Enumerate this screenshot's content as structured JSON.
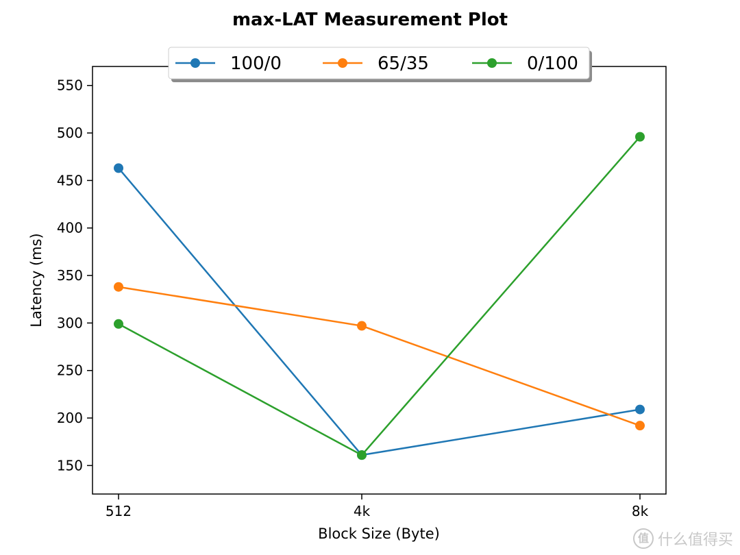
{
  "chart_data": {
    "type": "line",
    "title": "max-LAT Measurement Plot",
    "xlabel": "Block Size (Byte)",
    "ylabel": "Latency (ms)",
    "categories": [
      "512",
      "4k",
      "8k"
    ],
    "ylim": [
      120,
      570
    ],
    "yticks": [
      150,
      200,
      250,
      300,
      350,
      400,
      450,
      500,
      550
    ],
    "grid": false,
    "legend_position": "top-center",
    "series": [
      {
        "name": "100/0",
        "color": "#1f77b4",
        "values": [
          463,
          161,
          209
        ]
      },
      {
        "name": "65/35",
        "color": "#ff7f0e",
        "values": [
          338,
          297,
          192
        ]
      },
      {
        "name": "0/100",
        "color": "#2ca02c",
        "values": [
          299,
          161,
          496
        ]
      }
    ]
  },
  "watermark": {
    "badge": "值",
    "text": "什么值得买"
  }
}
